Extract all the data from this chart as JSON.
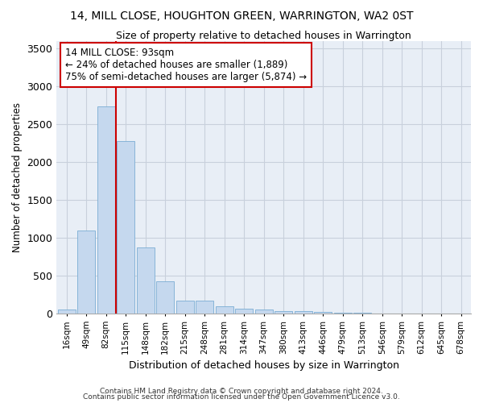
{
  "title": "14, MILL CLOSE, HOUGHTON GREEN, WARRINGTON, WA2 0ST",
  "subtitle": "Size of property relative to detached houses in Warrington",
  "xlabel": "Distribution of detached houses by size in Warrington",
  "ylabel": "Number of detached properties",
  "bar_color": "#c5d8ee",
  "bar_edgecolor": "#7aadd4",
  "grid_color": "#c8d0dc",
  "bg_color": "#e8eef6",
  "annotation_text": "14 MILL CLOSE: 93sqm\n← 24% of detached houses are smaller (1,889)\n75% of semi-detached houses are larger (5,874) →",
  "vline_x": 2.5,
  "vline_color": "#cc0000",
  "ylim": [
    0,
    3600
  ],
  "yticks": [
    0,
    500,
    1000,
    1500,
    2000,
    2500,
    3000,
    3500
  ],
  "categories": [
    "16sqm",
    "49sqm",
    "82sqm",
    "115sqm",
    "148sqm",
    "182sqm",
    "215sqm",
    "248sqm",
    "281sqm",
    "314sqm",
    "347sqm",
    "380sqm",
    "413sqm",
    "446sqm",
    "479sqm",
    "513sqm",
    "546sqm",
    "579sqm",
    "612sqm",
    "645sqm",
    "678sqm"
  ],
  "values": [
    50,
    1100,
    2730,
    2280,
    870,
    420,
    165,
    165,
    90,
    60,
    50,
    35,
    30,
    25,
    5,
    5,
    0,
    0,
    0,
    0,
    0
  ],
  "footer1": "Contains HM Land Registry data © Crown copyright and database right 2024.",
  "footer2": "Contains public sector information licensed under the Open Government Licence v3.0."
}
